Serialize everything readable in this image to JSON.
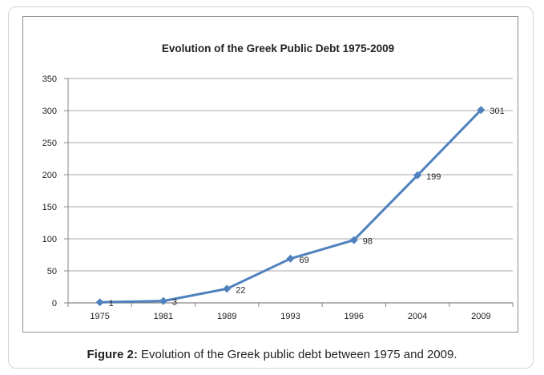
{
  "colors": {
    "series": "#4f81bd",
    "axis": "#868686",
    "grid": "#868686",
    "text": "#222222"
  },
  "caption": {
    "label": "Figure 2:",
    "text": "Evolution of the Greek public debt between 1975 and 2009."
  },
  "chart_data": {
    "type": "line",
    "title": "Evolution of the Greek Public Debt 1975-2009",
    "xlabel": "",
    "ylabel": "",
    "categories": [
      "1975",
      "1981",
      "1989",
      "1993",
      "1996",
      "2004",
      "2009"
    ],
    "series": [
      {
        "values": [
          1,
          3,
          22,
          69,
          98,
          199,
          301
        ],
        "data_labels": [
          "1",
          "3",
          "22",
          "69",
          "98",
          "199",
          "301"
        ],
        "marker": "diamond"
      }
    ],
    "ylim": [
      0,
      350
    ],
    "yticks": [
      0,
      50,
      100,
      150,
      200,
      250,
      300,
      350
    ],
    "grid": true,
    "legend": "none"
  }
}
